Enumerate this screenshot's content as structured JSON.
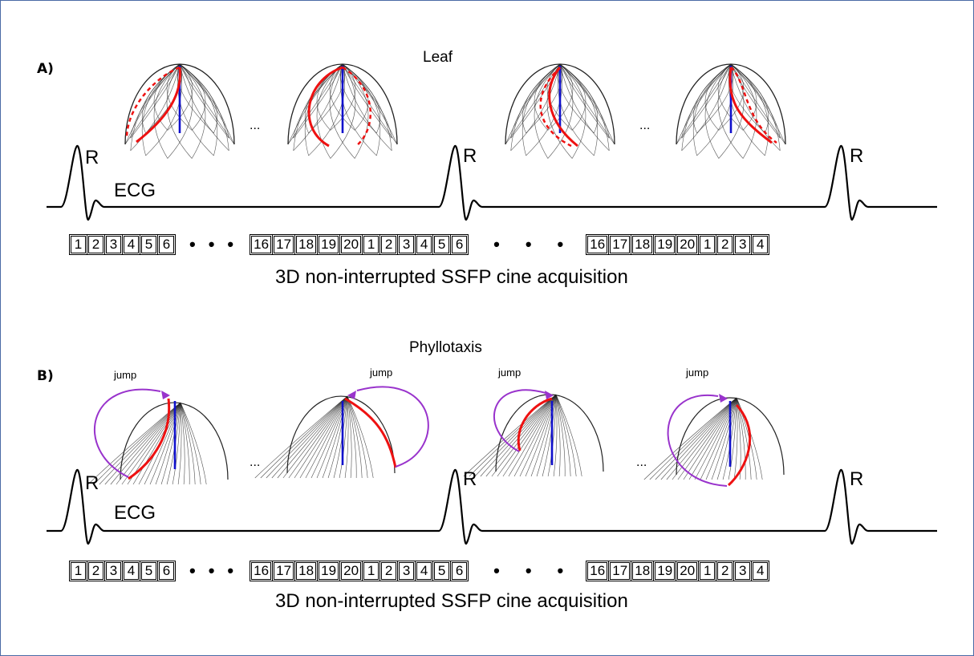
{
  "panels": [
    {
      "letter": "A)",
      "title": "Leaf",
      "r_label": "R",
      "ecg_label": "ECG",
      "ellipsis": "...",
      "frames_1": [
        "1",
        "2",
        "3",
        "4",
        "5",
        "6"
      ],
      "frames_2": [
        "16",
        "17",
        "18",
        "19",
        "20",
        "1",
        "2",
        "3",
        "4",
        "5",
        "6"
      ],
      "frames_3": [
        "16",
        "17",
        "18",
        "19",
        "20",
        "1",
        "2",
        "3",
        "4"
      ],
      "dots": "•",
      "caption": "3D non-interrupted SSFP cine acquisition"
    },
    {
      "letter": "B)",
      "title": "Phyllotaxis",
      "r_label": "R",
      "ecg_label": "ECG",
      "ellipsis": "...",
      "jump_label": "jump",
      "frames_1": [
        "1",
        "2",
        "3",
        "4",
        "5",
        "6"
      ],
      "frames_2": [
        "16",
        "17",
        "18",
        "19",
        "20",
        "1",
        "2",
        "3",
        "4",
        "5",
        "6"
      ],
      "frames_3": [
        "16",
        "17",
        "18",
        "19",
        "20",
        "1",
        "2",
        "3",
        "4"
      ],
      "dots": "•",
      "caption": "3D non-interrupted SSFP cine acquisition"
    }
  ],
  "colors": {
    "trajectory": "#ee1111",
    "axis": "#1010cc",
    "jump": "#9933cc",
    "mesh": "#222222"
  }
}
